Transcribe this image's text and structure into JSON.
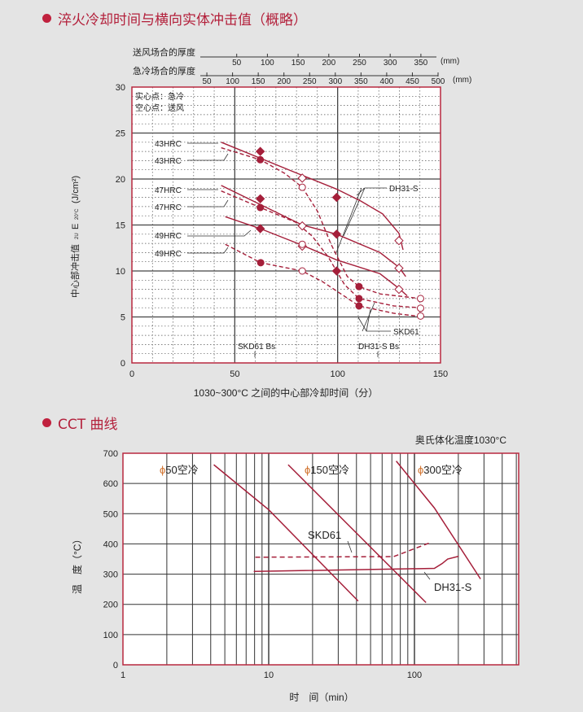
{
  "sections": {
    "impact_title": "淬火冷却时间与横向实体冲击值（概略）",
    "cct_title": "CCT 曲线"
  },
  "colors": {
    "curve": "#a51f3a",
    "border": "#b8283f",
    "bullet": "#c0213e",
    "phi": "#d0702a",
    "background": "#e4e4e4"
  },
  "chart_data": [
    {
      "type": "line",
      "title": "淬火冷却时间与横向实体冲击值（概略）",
      "xlabel": "1030~300°C 之间的中心部冷却时间（分）",
      "ylabel_main": "中心部冲击值",
      "ylabel_symbol": "E",
      "ylabel_sub": "2U",
      "ylabel_sub2": "20°C",
      "ylabel_unit": "(J/cm²)",
      "xlim": [
        0,
        150
      ],
      "ylim": [
        0,
        30
      ],
      "xticks": [
        0,
        50,
        100,
        150
      ],
      "yticks": [
        0,
        5,
        10,
        15,
        20,
        25,
        30
      ],
      "grid": true,
      "top_axes": [
        {
          "label": "送风场合的厚度",
          "ticks": [
            50,
            100,
            150,
            200,
            250,
            300,
            350
          ],
          "unit": "(mm)"
        },
        {
          "label": "急冷场合的厚度",
          "ticks": [
            50,
            100,
            150,
            200,
            250,
            300,
            350,
            400,
            450,
            500
          ],
          "unit": "(mm)"
        }
      ],
      "legend_notes": [
        "实心点：急冷",
        "空心点：送风"
      ],
      "curve_labels": [
        "43HRC",
        "43HRC",
        "47HRC",
        "47HRC",
        "49HRC",
        "49HRC"
      ],
      "material_labels": {
        "dh31s": "DH31-S",
        "skd61": "SKD61"
      },
      "bs_labels": {
        "skd61": "SKD61 Bs",
        "dh31s": "DH31-S Bs"
      },
      "bs_values": {
        "skd61": 62,
        "dh31s": 120
      },
      "series": [
        {
          "name": "43HRC",
          "material": "DH31-S",
          "style": "solid",
          "x": [
            43.4,
            82.8,
            99.5,
            111.3,
            121.9,
            129.8,
            131.8
          ],
          "y": [
            24.0,
            20.4,
            18.9,
            17.6,
            16.2,
            14.1,
            12.3
          ]
        },
        {
          "name": "47HRC",
          "material": "DH31-S",
          "style": "solid",
          "x": [
            43.4,
            82.8,
            99.5,
            120.6,
            129.8,
            133.1
          ],
          "y": [
            19.3,
            15.0,
            14.0,
            12.0,
            10.4,
            9.4
          ]
        },
        {
          "name": "49HRC",
          "material": "DH31-S",
          "style": "solid",
          "x": [
            45.4,
            62.4,
            82.8,
            99.5,
            120.6,
            129.8,
            133.8
          ],
          "y": [
            15.9,
            14.6,
            12.8,
            11.2,
            9.7,
            8.1,
            7.3
          ]
        },
        {
          "name": "43HRC",
          "material": "SKD61",
          "style": "dashed",
          "x": [
            43.4,
            62.4,
            74.4,
            82.8,
            90.2,
            96.8,
            104.7,
            110.4,
            120.6,
            140.3
          ],
          "y": [
            23.4,
            22.1,
            20.6,
            19.1,
            16.5,
            12.9,
            9.4,
            8.3,
            7.5,
            7.0
          ]
        },
        {
          "name": "47HRC",
          "material": "SKD61",
          "style": "dashed",
          "x": [
            43.4,
            62.4,
            79.6,
            87.6,
            95.5,
            103.4,
            110.4,
            127.2,
            140.3
          ],
          "y": [
            18.7,
            16.9,
            15.3,
            13.8,
            11.5,
            8.5,
            7.0,
            6.2,
            6.0
          ]
        },
        {
          "name": "49HRC",
          "material": "SKD61",
          "style": "dashed",
          "x": [
            45.4,
            62.6,
            82.8,
            92.9,
            110.4,
            127.2,
            141.7
          ],
          "y": [
            12.9,
            10.9,
            10.0,
            8.8,
            6.2,
            5.4,
            5.0
          ]
        }
      ],
      "markers": [
        {
          "shape": "diamond",
          "filled": true,
          "x": 62.4,
          "y": 23.0
        },
        {
          "shape": "diamond",
          "filled": true,
          "x": 62.4,
          "y": 17.85
        },
        {
          "shape": "diamond",
          "filled": true,
          "x": 62.4,
          "y": 14.6
        },
        {
          "shape": "diamond",
          "filled": true,
          "x": 99.5,
          "y": 18.0
        },
        {
          "shape": "diamond",
          "filled": true,
          "x": 99.5,
          "y": 14.0
        },
        {
          "shape": "diamond",
          "filled": true,
          "x": 99.5,
          "y": 10.0
        },
        {
          "shape": "circle",
          "filled": true,
          "x": 62.4,
          "y": 22.1
        },
        {
          "shape": "circle",
          "filled": true,
          "x": 62.4,
          "y": 16.9
        },
        {
          "shape": "circle",
          "filled": true,
          "x": 62.6,
          "y": 10.9
        },
        {
          "shape": "circle",
          "filled": true,
          "x": 110.4,
          "y": 8.3
        },
        {
          "shape": "circle",
          "filled": true,
          "x": 110.4,
          "y": 7.0
        },
        {
          "shape": "circle",
          "filled": true,
          "x": 110.4,
          "y": 6.2
        },
        {
          "shape": "diamond",
          "filled": false,
          "x": 82.8,
          "y": 20.1
        },
        {
          "shape": "diamond",
          "filled": false,
          "x": 82.8,
          "y": 14.9
        },
        {
          "shape": "diamond",
          "filled": false,
          "x": 82.8,
          "y": 12.7
        },
        {
          "shape": "diamond",
          "filled": false,
          "x": 129.8,
          "y": 13.3
        },
        {
          "shape": "diamond",
          "filled": false,
          "x": 129.8,
          "y": 10.3
        },
        {
          "shape": "diamond",
          "filled": false,
          "x": 129.8,
          "y": 8.0
        },
        {
          "shape": "circle",
          "filled": false,
          "x": 82.8,
          "y": 19.1
        },
        {
          "shape": "circle",
          "filled": false,
          "x": 82.8,
          "y": 12.9
        },
        {
          "shape": "circle",
          "filled": false,
          "x": 82.8,
          "y": 10.0
        },
        {
          "shape": "circle",
          "filled": false,
          "x": 140.3,
          "y": 7.0
        },
        {
          "shape": "circle",
          "filled": false,
          "x": 140.3,
          "y": 5.95
        },
        {
          "shape": "circle",
          "filled": false,
          "x": 140.3,
          "y": 5.1
        }
      ]
    },
    {
      "type": "line",
      "title": "CCT 曲线",
      "note": "奥氏体化温度1030°C",
      "xlabel": "时　间（min）",
      "ylabel": "温　度（°C）",
      "xscale": "log",
      "xlim": [
        1,
        500
      ],
      "ylim": [
        0,
        700
      ],
      "xticks": [
        1,
        10,
        100
      ],
      "yticks": [
        0,
        100,
        200,
        300,
        400,
        500,
        600,
        700
      ],
      "grid": true,
      "cooling_labels": [
        {
          "phi": "ϕ",
          "text": "50空冷"
        },
        {
          "phi": "ϕ",
          "text": "150空冷"
        },
        {
          "phi": "ϕ",
          "text": "300空冷"
        }
      ],
      "series": [
        {
          "name": "ϕ50空冷",
          "style": "solid",
          "x": [
            4.2,
            10.0,
            41.1
          ],
          "y": [
            662,
            513,
            211
          ]
        },
        {
          "name": "ϕ150空冷",
          "style": "solid",
          "x": [
            13.6,
            31.8,
            120
          ],
          "y": [
            662,
            484,
            206
          ]
        },
        {
          "name": "ϕ300空冷",
          "style": "solid",
          "x": [
            75,
            137,
            284
          ],
          "y": [
            674,
            519,
            284
          ]
        },
        {
          "name": "SKD61",
          "style": "dashed",
          "x": [
            8.1,
            72,
            128
          ],
          "y": [
            356,
            358,
            404
          ]
        },
        {
          "name": "DH31-S",
          "style": "solid",
          "x": [
            7.9,
            137,
            155,
            169,
            201
          ],
          "y": [
            309,
            319,
            335,
            350,
            359
          ]
        }
      ]
    }
  ]
}
